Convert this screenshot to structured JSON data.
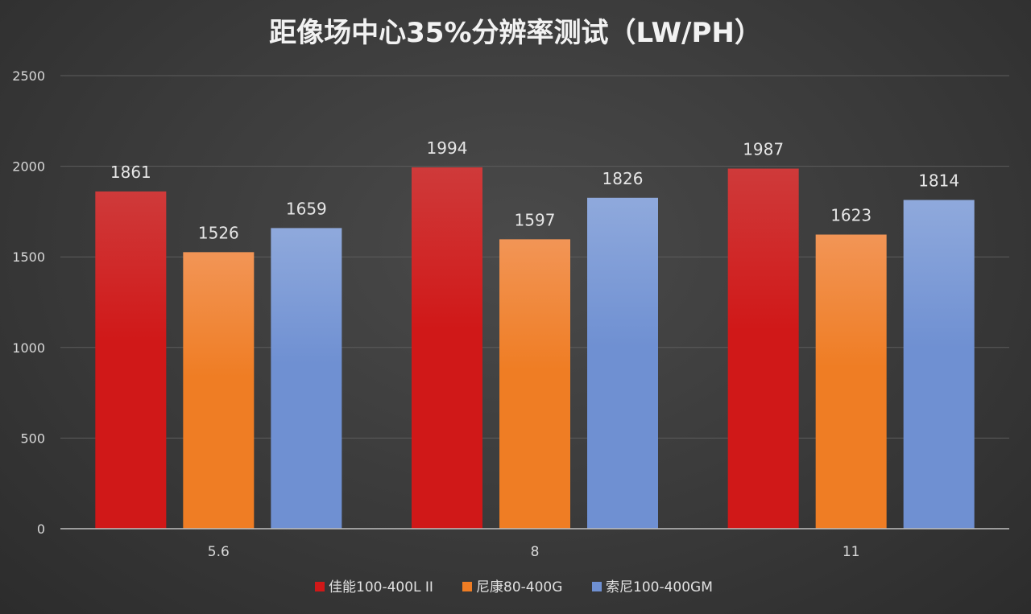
{
  "chart_data": {
    "type": "bar",
    "title": "距像场中心35%分辨率测试（LW/PH）",
    "xlabel": "",
    "ylabel": "",
    "categories": [
      "5.6",
      "8",
      "11"
    ],
    "series": [
      {
        "name": "佳能100-400L II",
        "values": [
          1861,
          1994,
          1987
        ],
        "color": "#d01818",
        "color_top": "#cf3a3a"
      },
      {
        "name": "尼康80-400G",
        "values": [
          1526,
          1597,
          1623
        ],
        "color": "#ef7d24",
        "color_top": "#f29556"
      },
      {
        "name": "索尼100-400GM",
        "values": [
          1659,
          1826,
          1814
        ],
        "color": "#6f90d2",
        "color_top": "#8fa9dc"
      }
    ],
    "ylim": [
      0,
      2500
    ],
    "yticks": [
      0,
      500,
      1000,
      1500,
      2000,
      2500
    ],
    "grid": true,
    "legend": "bottom"
  }
}
